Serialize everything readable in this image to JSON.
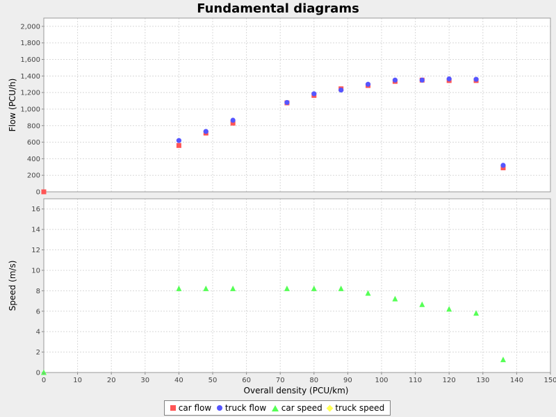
{
  "chart_data": {
    "type": "scatter",
    "title": "Fundamental diagrams",
    "xlabel": "Overall density (PCU/km)",
    "xlim": [
      0,
      150
    ],
    "x_ticks": [
      0,
      10,
      20,
      30,
      40,
      50,
      60,
      70,
      80,
      90,
      100,
      110,
      120,
      130,
      140,
      150
    ],
    "grid": true,
    "legend_position": "bottom",
    "panels": [
      {
        "ylabel": "Flow (PCU/h)",
        "ylim": [
          0,
          2100
        ],
        "y_ticks": [
          0,
          200,
          400,
          600,
          800,
          1000,
          1200,
          1400,
          1600,
          1800,
          2000
        ],
        "y_tick_labels": [
          "0",
          "200",
          "400",
          "600",
          "800",
          "1,000",
          "1,200",
          "1,400",
          "1,600",
          "1,800",
          "2,000"
        ],
        "series": [
          {
            "name": "car flow",
            "marker": "square",
            "color": "#ff5555",
            "x": [
              0,
              40,
              48,
              56,
              72,
              80,
              88,
              96,
              104,
              112,
              120,
              128,
              136
            ],
            "y": [
              0,
              560,
              710,
              830,
              1075,
              1165,
              1245,
              1285,
              1335,
              1350,
              1345,
              1345,
              290
            ]
          },
          {
            "name": "truck flow",
            "marker": "circle",
            "color": "#5555ff",
            "x": [
              40,
              48,
              56,
              72,
              80,
              88,
              96,
              104,
              112,
              120,
              128,
              136
            ],
            "y": [
              620,
              730,
              865,
              1080,
              1185,
              1230,
              1300,
              1350,
              1350,
              1365,
              1360,
              320
            ]
          }
        ]
      },
      {
        "ylabel": "Speed (m/s)",
        "ylim": [
          0,
          17
        ],
        "y_ticks": [
          0,
          2,
          4,
          6,
          8,
          10,
          12,
          14,
          16
        ],
        "y_tick_labels": [
          "0",
          "2",
          "4",
          "6",
          "8",
          "10",
          "12",
          "14",
          "16"
        ],
        "series": [
          {
            "name": "car speed",
            "marker": "triangle",
            "color": "#55ff55",
            "x": [
              0,
              40,
              48,
              56,
              72,
              80,
              88,
              96,
              104,
              112,
              120,
              128,
              136
            ],
            "y": [
              0,
              8.2,
              8.2,
              8.2,
              8.2,
              8.2,
              8.2,
              7.75,
              7.2,
              6.65,
              6.2,
              5.8,
              1.25
            ]
          },
          {
            "name": "truck speed",
            "marker": "diamond",
            "color": "#ffff55",
            "x": [],
            "y": []
          }
        ]
      }
    ]
  },
  "legend": {
    "items": [
      {
        "label": "car flow",
        "color": "#ff5555",
        "marker": "square"
      },
      {
        "label": "truck flow",
        "color": "#5555ff",
        "marker": "circle"
      },
      {
        "label": "car speed",
        "color": "#55ff55",
        "marker": "triangle"
      },
      {
        "label": "truck speed",
        "color": "#ffff55",
        "marker": "diamond"
      }
    ]
  }
}
